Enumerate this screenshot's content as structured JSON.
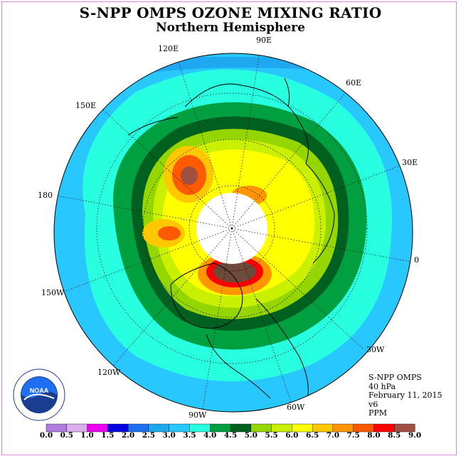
{
  "title": "S-NPP OMPS OZONE MIXING RATIO",
  "subtitle": "Northern Hemisphere",
  "longitude_labels": {
    "e90": "90E",
    "e120": "120E",
    "e60": "60E",
    "e150": "150E",
    "e30": "30E",
    "e180": "180",
    "e0": "0",
    "w150": "150W",
    "w30": "30W",
    "w120": "120W",
    "w60": "60W",
    "w90": "90W"
  },
  "info": {
    "instrument": "S-NPP OMPS",
    "level": "40 hPa",
    "date": "February 11, 2015",
    "version": "v6",
    "units": "PPM"
  },
  "logo_text": "NOAA",
  "colorbar": {
    "colors": [
      "#b07ce0",
      "#dcaeee",
      "#f000f0",
      "#0000e0",
      "#1e70f0",
      "#1ea8f0",
      "#28c8ff",
      "#28ffe0",
      "#00a040",
      "#006020",
      "#96d600",
      "#c8f000",
      "#ffff00",
      "#ffc800",
      "#ff9600",
      "#ff5a00",
      "#ff0000",
      "#a05040"
    ],
    "ticks": [
      "0.0",
      "0.5",
      "1.0",
      "1.5",
      "2.0",
      "2.5",
      "3.0",
      "3.5",
      "4.0",
      "4.5",
      "5.0",
      "5.5",
      "6.0",
      "6.5",
      "7.0",
      "7.5",
      "8.0",
      "8.5",
      "9.0"
    ]
  }
}
